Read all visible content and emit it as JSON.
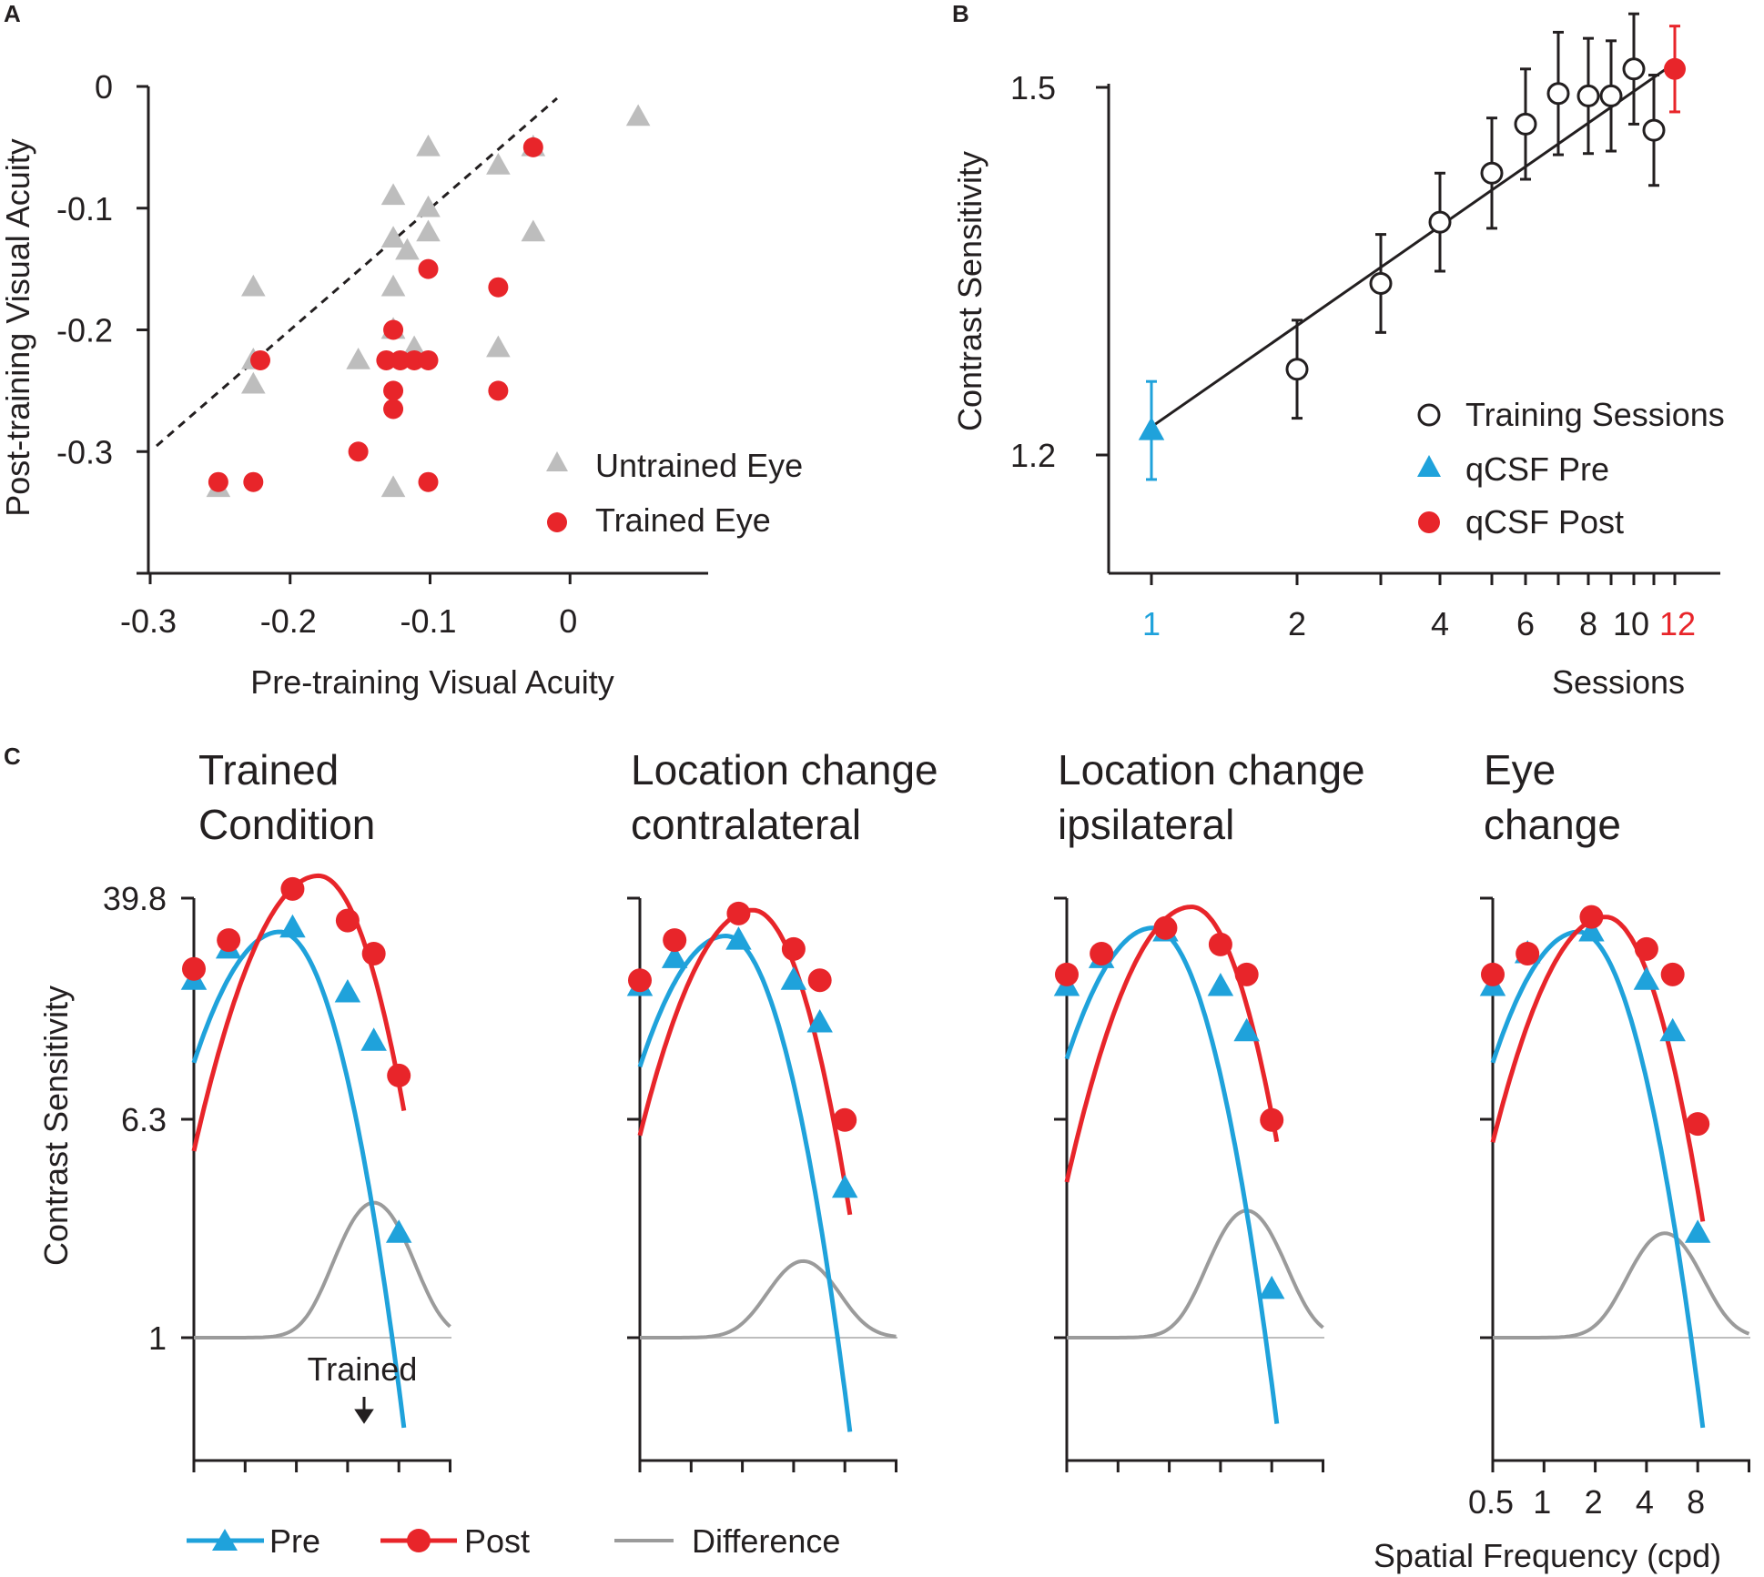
{
  "colors": {
    "red": "#e8252a",
    "blue": "#1fa2db",
    "gray": "#bdbdbd",
    "black": "#231f20",
    "diff": "#9b9b9b"
  },
  "panels": {
    "a": "A",
    "b": "B",
    "c": "C"
  },
  "chart_data": [
    {
      "panel": "A",
      "type": "scatter",
      "xlabel": "Pre-training Visual Acuity",
      "ylabel": "Post-training Visual Acuity",
      "xlim": [
        -0.3,
        0.1
      ],
      "ylim": [
        -0.4,
        0
      ],
      "xticks": [
        -0.3,
        -0.2,
        -0.1,
        0
      ],
      "xtick_labels": [
        "-0.3",
        "-0.2",
        "-0.1",
        "0"
      ],
      "yticks": [
        0,
        -0.1,
        -0.2,
        -0.3
      ],
      "ytick_labels": [
        "0",
        "-0.1",
        "-0.2",
        "-0.3"
      ],
      "identity_line": true,
      "series": [
        {
          "name": "Untrained Eye",
          "marker": "triangle",
          "color": "#bdbdbd",
          "x": [
            -0.225,
            -0.225,
            -0.225,
            -0.25,
            -0.125,
            -0.125,
            -0.125,
            -0.125,
            -0.125,
            -0.1,
            -0.1,
            -0.1,
            -0.115,
            -0.11,
            -0.15,
            -0.125,
            -0.05,
            -0.05,
            -0.025,
            -0.025,
            0.05
          ],
          "y": [
            -0.165,
            -0.225,
            -0.245,
            -0.33,
            -0.125,
            -0.165,
            -0.2,
            -0.2,
            -0.33,
            -0.05,
            -0.1,
            -0.12,
            -0.135,
            -0.215,
            -0.225,
            -0.09,
            -0.065,
            -0.215,
            -0.05,
            -0.12,
            -0.025
          ]
        },
        {
          "name": "Trained Eye",
          "marker": "circle",
          "color": "#e8252a",
          "x": [
            -0.25,
            -0.225,
            -0.22,
            -0.15,
            -0.125,
            -0.125,
            -0.125,
            -0.13,
            -0.12,
            -0.11,
            -0.1,
            -0.1,
            -0.1,
            -0.05,
            -0.05,
            -0.025
          ],
          "y": [
            -0.325,
            -0.325,
            -0.225,
            -0.3,
            -0.2,
            -0.25,
            -0.265,
            -0.225,
            -0.225,
            -0.225,
            -0.15,
            -0.225,
            -0.325,
            -0.165,
            -0.25,
            -0.05
          ]
        }
      ]
    },
    {
      "panel": "B",
      "type": "line",
      "xlabel": "Sessions",
      "ylabel": "Contrast Sensitivity",
      "xscale": "log",
      "xlim": [
        0.75,
        14
      ],
      "ylim": [
        1.1,
        1.54
      ],
      "xtick_labels": [
        "1",
        "2",
        "4",
        "6",
        "8",
        "10",
        "12"
      ],
      "xticks": [
        1,
        2,
        4,
        6,
        8,
        10,
        12
      ],
      "yticks": [
        1.2,
        1.5
      ],
      "ytick_labels": [
        "1.2",
        "1.5"
      ],
      "fit_line": {
        "x": [
          1,
          12
        ],
        "y": [
          1.22,
          1.52
        ]
      },
      "series": [
        {
          "name": "Training Sessions",
          "marker": "open-circle",
          "color": "#231f20",
          "x": [
            2,
            3,
            4,
            5,
            6,
            7,
            8,
            9,
            10,
            11
          ],
          "y": [
            1.27,
            1.34,
            1.39,
            1.43,
            1.47,
            1.495,
            1.493,
            1.493,
            1.515,
            1.465
          ],
          "err": [
            0.04,
            0.04,
            0.04,
            0.045,
            0.045,
            0.05,
            0.047,
            0.045,
            0.045,
            0.045
          ]
        },
        {
          "name": "qCSF Pre",
          "marker": "triangle",
          "color": "#1fa2db",
          "x": [
            1
          ],
          "y": [
            1.22
          ],
          "err": [
            0.04
          ]
        },
        {
          "name": "qCSF Post",
          "marker": "circle",
          "color": "#e8252a",
          "x": [
            12
          ],
          "y": [
            1.515
          ],
          "err": [
            0.035
          ]
        }
      ]
    },
    {
      "panel": "C",
      "type": "line",
      "ylabel": "Contrast Sensitivity",
      "xlabel": "Spatial Frequency (cpd)",
      "xscale": "log2",
      "xtick_labels": [
        "0.5",
        "1",
        "2",
        "4",
        "8"
      ],
      "xticks": [
        0.5,
        1,
        2,
        4,
        8
      ],
      "yscale": "log",
      "ytick_labels": [
        "39.8",
        "6.3",
        "1"
      ],
      "yticks": [
        39.8,
        6.3,
        1
      ],
      "legend": {
        "pre": "Pre",
        "post": "Post",
        "difference": "Difference"
      },
      "trained_annotation": "Trained",
      "trained_sf": 5.7,
      "subplots": [
        {
          "title_lines": [
            "Trained",
            "Condition"
          ],
          "pre": {
            "peak_sf": 1.6,
            "peak_cs": 30,
            "bw": 1.3,
            "sf": [
              0.5,
              0.8,
              1.9,
              4.0,
              5.7,
              8.0
            ],
            "cs": [
              20,
              26,
              31,
              18,
              12,
              2.4
            ]
          },
          "post": {
            "peak_sf": 2.7,
            "peak_cs": 48,
            "bw": 1.3,
            "sf": [
              0.5,
              0.8,
              1.9,
              4.0,
              5.7,
              8.0
            ],
            "cs": [
              22,
              28,
              43,
              33,
              25,
              9
            ]
          },
          "diff_peak": 3.1
        },
        {
          "title_lines": [
            "Location change",
            "contralateral"
          ],
          "pre": {
            "peak_sf": 1.6,
            "peak_cs": 29,
            "bw": 1.3,
            "sf": [
              0.5,
              0.8,
              1.9,
              4.0,
              5.7,
              8.0
            ],
            "cs": [
              19,
              24,
              28,
              20,
              14,
              3.5
            ]
          },
          "post": {
            "peak_sf": 2.3,
            "peak_cs": 36,
            "bw": 1.3,
            "sf": [
              0.5,
              0.8,
              1.9,
              4.0,
              5.7,
              8.0
            ],
            "cs": [
              20,
              28,
              35,
              26,
              20,
              6.2
            ]
          },
          "diff_peak": 1.9
        },
        {
          "title_lines": [
            "Location change",
            "ipsilateral"
          ],
          "pre": {
            "peak_sf": 1.6,
            "peak_cs": 31,
            "bw": 1.3,
            "sf": [
              0.5,
              0.8,
              1.9,
              4.0,
              5.7,
              8.0
            ],
            "cs": [
              19,
              24,
              30,
              19,
              13,
              1.5
            ]
          },
          "post": {
            "peak_sf": 2.7,
            "peak_cs": 37,
            "bw": 1.3,
            "sf": [
              0.5,
              0.8,
              1.9,
              4.0,
              5.7,
              8.0
            ],
            "cs": [
              21,
              25,
              31,
              27,
              21,
              6.2
            ]
          },
          "diff_peak": 2.9
        },
        {
          "title_lines": [
            "Eye",
            "change"
          ],
          "pre": {
            "peak_sf": 1.6,
            "peak_cs": 30,
            "bw": 1.3,
            "sf": [
              0.5,
              0.8,
              1.9,
              4.0,
              5.7,
              8.0
            ],
            "cs": [
              19,
              25,
              30,
              20,
              13,
              2.4
            ]
          },
          "post": {
            "peak_sf": 2.3,
            "peak_cs": 34,
            "bw": 1.3,
            "sf": [
              0.5,
              0.8,
              1.9,
              4.0,
              5.7,
              8.0
            ],
            "cs": [
              21,
              25,
              34,
              26,
              21,
              6.0
            ]
          },
          "diff_peak": 2.4
        }
      ]
    }
  ]
}
